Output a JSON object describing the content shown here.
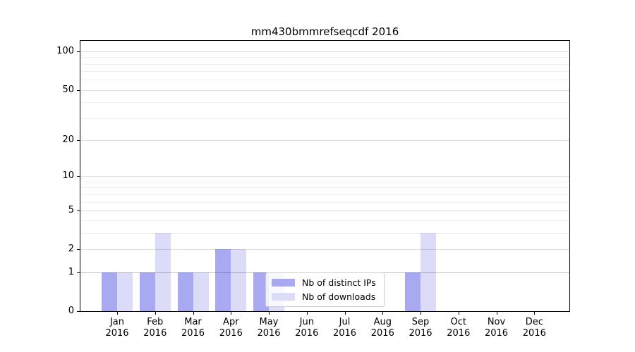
{
  "figure": {
    "title": "mm430bmmrefseqcdf 2016"
  },
  "chart_data": {
    "type": "bar",
    "title": "mm430bmmrefseqcdf 2016",
    "categories": [
      "Jan",
      "Feb",
      "Mar",
      "Apr",
      "May",
      "Jun",
      "Jul",
      "Aug",
      "Sep",
      "Oct",
      "Nov",
      "Dec"
    ],
    "x_tick_year": "2016",
    "series": [
      {
        "name": "Nb of distinct IPs",
        "color": "#a9a9f2",
        "values": [
          1,
          1,
          1,
          2,
          1,
          0,
          0,
          0,
          1,
          0,
          0,
          0
        ]
      },
      {
        "name": "Nb of downloads",
        "color": "#dcdcf9",
        "values": [
          1,
          3,
          1,
          2,
          1,
          0,
          0,
          0,
          3,
          0,
          0,
          0
        ]
      }
    ],
    "xlabel": "",
    "ylabel": "",
    "yscale": "log10(1+x)",
    "ylim": [
      0,
      121
    ],
    "yticks": [
      0,
      1,
      2,
      5,
      10,
      20,
      50,
      100
    ],
    "minor_gridlines": [
      3,
      4,
      6,
      7,
      8,
      9,
      30,
      40,
      60,
      70,
      80,
      90
    ],
    "grid": "horizontal",
    "legend_position": "lower center",
    "bar_layout": "pairs side-by-side centered on month tick"
  },
  "colors": {
    "gridline_major_on_one": "rgba(0,0,0,0.24)",
    "gridline_major": "rgba(0,0,0,0.13)",
    "gridline_minor": "rgba(0,0,0,0.06)",
    "axis": "#000000",
    "legend_border": "#cccccc"
  }
}
